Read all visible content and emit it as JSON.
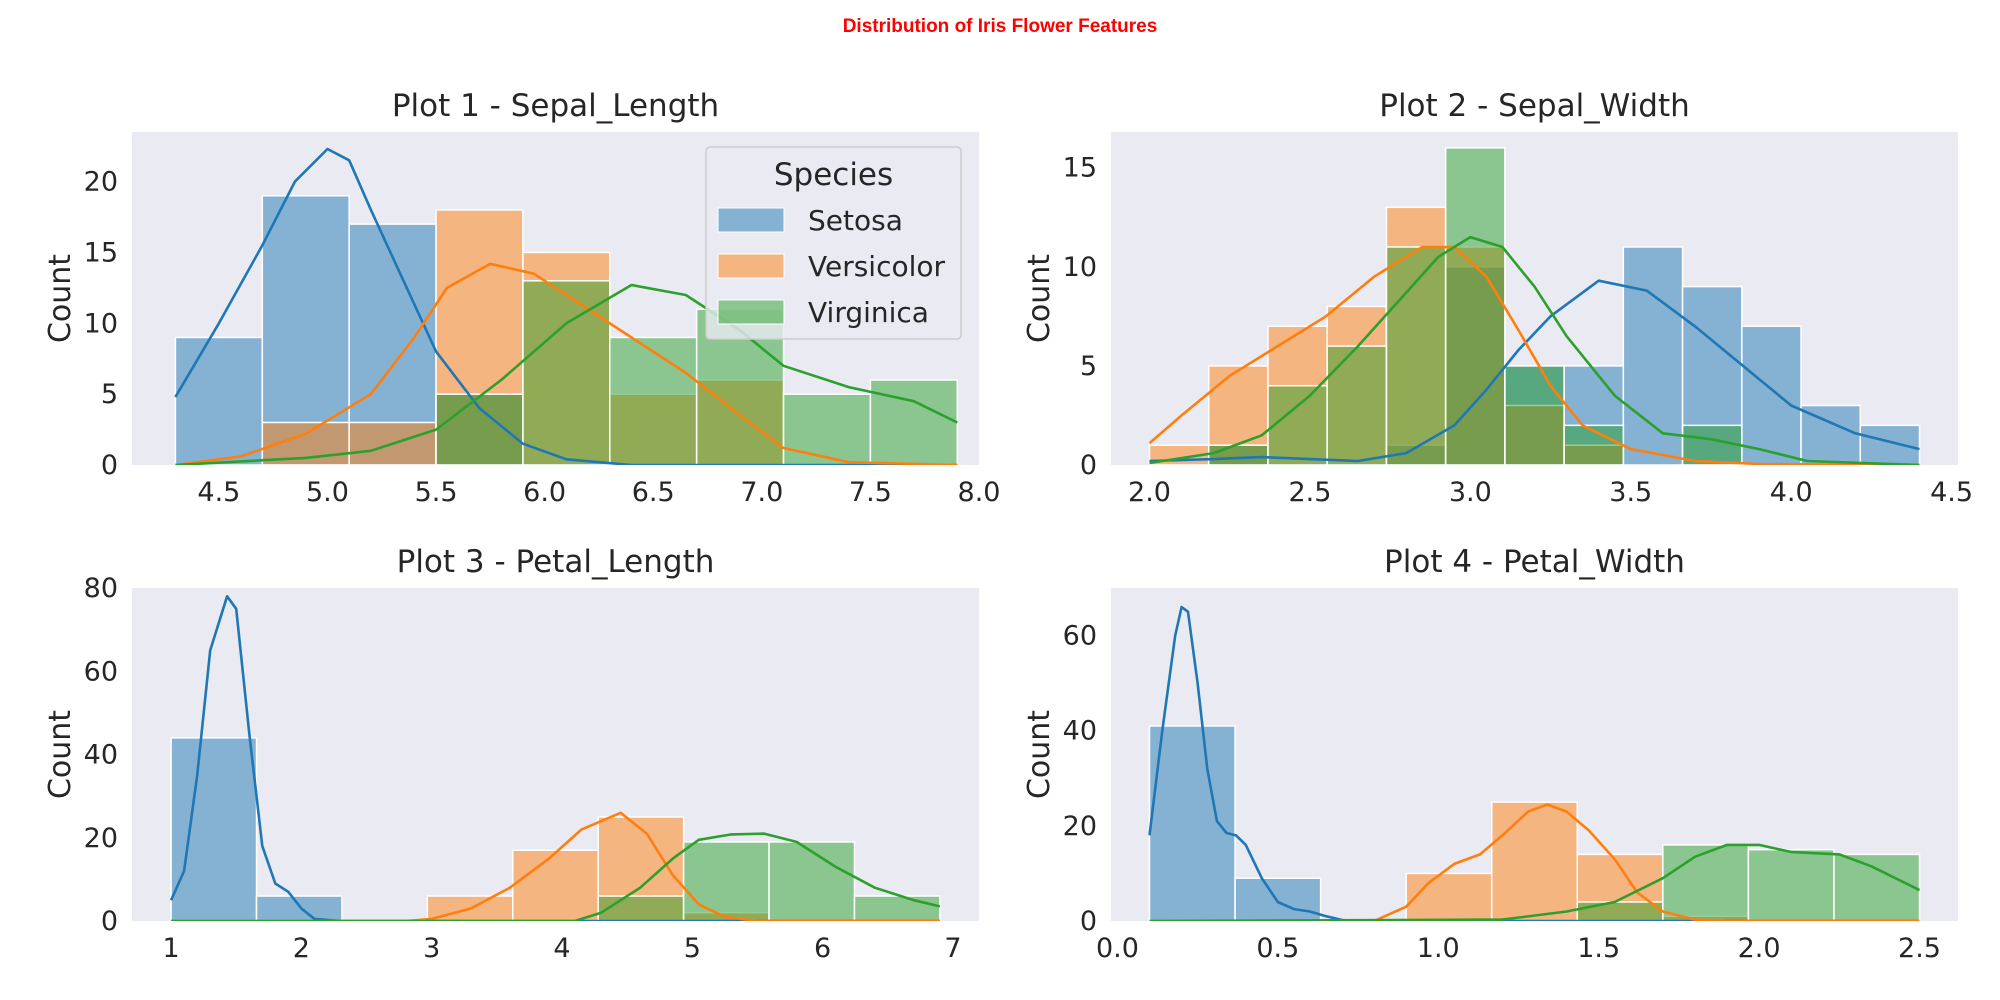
{
  "suptitle": "Distribution of Iris Flower Features",
  "legend": {
    "title": "Species",
    "entries": [
      "Setosa",
      "Versicolor",
      "Virginica"
    ],
    "location": "upper right of Plot 1"
  },
  "colors": {
    "Setosa": "#1f77b4",
    "Versicolor": "#ff7f0e",
    "Virginica": "#2ca02c",
    "background": "#eaeaf2",
    "grid": "off"
  },
  "chart_data": [
    {
      "type": "histogram",
      "title": "Plot 1 - Sepal_Length",
      "xlabel": "",
      "ylabel": "Count",
      "xlim": [
        4.1,
        8.0
      ],
      "ylim": [
        0,
        23.5
      ],
      "xticks": [
        4.5,
        5.0,
        5.5,
        6.0,
        6.5,
        7.0,
        7.5,
        8.0
      ],
      "xtick_labels": [
        "4.5",
        "5.0",
        "5.5",
        "6.0",
        "6.5",
        "7.0",
        "7.5",
        "8.0"
      ],
      "yticks": [
        0,
        5,
        10,
        15,
        20
      ],
      "bin_edges": [
        4.3,
        4.7,
        5.1,
        5.5,
        5.9,
        6.3,
        6.7,
        7.1,
        7.5,
        7.9
      ],
      "series": [
        {
          "name": "Setosa",
          "counts": [
            9,
            19,
            17,
            5,
            0,
            0,
            0,
            0,
            0
          ],
          "kde": [
            [
              4.3,
              4.8
            ],
            [
              4.5,
              10
            ],
            [
              4.7,
              15.5
            ],
            [
              4.85,
              20
            ],
            [
              5.0,
              22.3
            ],
            [
              5.1,
              21.5
            ],
            [
              5.2,
              18
            ],
            [
              5.35,
              13
            ],
            [
              5.5,
              8
            ],
            [
              5.7,
              4
            ],
            [
              5.9,
              1.5
            ],
            [
              6.1,
              0.4
            ],
            [
              6.4,
              0
            ],
            [
              7.9,
              0
            ]
          ]
        },
        {
          "name": "Versicolor",
          "counts": [
            0,
            3,
            3,
            18,
            15,
            5,
            6,
            0,
            0
          ],
          "kde": [
            [
              4.3,
              0
            ],
            [
              4.6,
              0.6
            ],
            [
              4.9,
              2.2
            ],
            [
              5.2,
              5
            ],
            [
              5.4,
              9
            ],
            [
              5.55,
              12.5
            ],
            [
              5.75,
              14.2
            ],
            [
              5.95,
              13.5
            ],
            [
              6.15,
              11.5
            ],
            [
              6.4,
              9
            ],
            [
              6.65,
              6.5
            ],
            [
              6.9,
              3.5
            ],
            [
              7.1,
              1.2
            ],
            [
              7.4,
              0.2
            ],
            [
              7.9,
              0
            ]
          ]
        },
        {
          "name": "Virginica",
          "counts": [
            0,
            0,
            0,
            5,
            13,
            9,
            11,
            5,
            6
          ],
          "kde": [
            [
              4.3,
              0
            ],
            [
              4.9,
              0.5
            ],
            [
              5.2,
              1
            ],
            [
              5.5,
              2.5
            ],
            [
              5.8,
              6
            ],
            [
              6.1,
              10
            ],
            [
              6.4,
              12.7
            ],
            [
              6.65,
              12
            ],
            [
              6.9,
              9.5
            ],
            [
              7.1,
              7
            ],
            [
              7.4,
              5.5
            ],
            [
              7.7,
              4.5
            ],
            [
              7.9,
              3
            ]
          ]
        }
      ]
    },
    {
      "type": "histogram",
      "title": "Plot 2 - Sepal_Width",
      "xlabel": "",
      "ylabel": "Count",
      "xlim": [
        1.88,
        4.52
      ],
      "ylim": [
        0,
        16.8
      ],
      "xticks": [
        2.0,
        2.5,
        3.0,
        3.5,
        4.0,
        4.5
      ],
      "xtick_labels": [
        "2.0",
        "2.5",
        "3.0",
        "3.5",
        "4.0",
        "4.5"
      ],
      "yticks": [
        0,
        5,
        10,
        15
      ],
      "bin_edges": [
        2.0,
        2.1846,
        2.3692,
        2.5538,
        2.7385,
        2.9231,
        3.1077,
        3.2923,
        3.4769,
        3.6615,
        3.8462,
        4.0308,
        4.2154,
        4.4
      ],
      "series": [
        {
          "name": "Setosa",
          "counts": [
            0,
            1,
            0,
            0,
            1,
            10,
            5,
            5,
            11,
            9,
            7,
            3,
            2,
            1
          ],
          "kde": [
            [
              2.0,
              0.2
            ],
            [
              2.2,
              0.3
            ],
            [
              2.35,
              0.4
            ],
            [
              2.5,
              0.3
            ],
            [
              2.65,
              0.2
            ],
            [
              2.8,
              0.6
            ],
            [
              2.95,
              2
            ],
            [
              3.05,
              3.8
            ],
            [
              3.15,
              5.8
            ],
            [
              3.25,
              7.5
            ],
            [
              3.4,
              9.3
            ],
            [
              3.55,
              8.8
            ],
            [
              3.7,
              7
            ],
            [
              3.85,
              5
            ],
            [
              4.0,
              3
            ],
            [
              4.2,
              1.6
            ],
            [
              4.4,
              0.8
            ]
          ]
        },
        {
          "name": "Versicolor",
          "counts": [
            1,
            5,
            7,
            8,
            13,
            11,
            3,
            1,
            0,
            0,
            0,
            0,
            0,
            0
          ],
          "kde": [
            [
              2.0,
              1.1
            ],
            [
              2.1,
              2.5
            ],
            [
              2.25,
              4.5
            ],
            [
              2.4,
              6
            ],
            [
              2.55,
              7.5
            ],
            [
              2.7,
              9.5
            ],
            [
              2.85,
              11
            ],
            [
              2.95,
              11
            ],
            [
              3.05,
              9.5
            ],
            [
              3.15,
              6.8
            ],
            [
              3.25,
              4
            ],
            [
              3.35,
              2
            ],
            [
              3.5,
              0.8
            ],
            [
              3.7,
              0.2
            ],
            [
              3.9,
              0.05
            ],
            [
              4.4,
              0
            ]
          ]
        },
        {
          "name": "Virginica",
          "counts": [
            0,
            1,
            4,
            6,
            11,
            16,
            5,
            2,
            0,
            2,
            0,
            0,
            0,
            0
          ],
          "kde": [
            [
              2.0,
              0.1
            ],
            [
              2.2,
              0.6
            ],
            [
              2.35,
              1.5
            ],
            [
              2.5,
              3.5
            ],
            [
              2.65,
              6
            ],
            [
              2.8,
              8.7
            ],
            [
              2.9,
              10.5
            ],
            [
              3.0,
              11.5
            ],
            [
              3.1,
              11
            ],
            [
              3.2,
              9
            ],
            [
              3.3,
              6.5
            ],
            [
              3.45,
              3.5
            ],
            [
              3.6,
              1.6
            ],
            [
              3.75,
              1.3
            ],
            [
              3.9,
              0.8
            ],
            [
              4.05,
              0.2
            ],
            [
              4.4,
              0
            ]
          ]
        }
      ]
    },
    {
      "type": "histogram",
      "title": "Plot 3 - Petal_Length",
      "xlabel": "",
      "ylabel": "Count",
      "xlim": [
        0.7,
        7.2
      ],
      "ylim": [
        0,
        80
      ],
      "xticks": [
        1,
        2,
        3,
        4,
        5,
        6,
        7
      ],
      "xtick_labels": [
        "1",
        "2",
        "3",
        "4",
        "5",
        "6",
        "7"
      ],
      "yticks": [
        0,
        20,
        40,
        60,
        80
      ],
      "bin_edges": [
        1.0,
        1.6556,
        2.3111,
        2.9667,
        3.6222,
        4.2778,
        4.9333,
        5.5889,
        6.2444,
        6.9
      ],
      "series": [
        {
          "name": "Setosa",
          "counts": [
            44,
            6,
            0,
            0,
            0,
            0,
            0,
            0,
            0
          ],
          "kde": [
            [
              1.0,
              5
            ],
            [
              1.1,
              12
            ],
            [
              1.2,
              35
            ],
            [
              1.3,
              65
            ],
            [
              1.43,
              78
            ],
            [
              1.5,
              75
            ],
            [
              1.6,
              45
            ],
            [
              1.7,
              18
            ],
            [
              1.8,
              9
            ],
            [
              1.9,
              7
            ],
            [
              2.0,
              3
            ],
            [
              2.1,
              0.5
            ],
            [
              2.3,
              0
            ],
            [
              6.9,
              0
            ]
          ]
        },
        {
          "name": "Versicolor",
          "counts": [
            0,
            0,
            0,
            6,
            17,
            25,
            2,
            0,
            0
          ],
          "kde": [
            [
              1.0,
              0
            ],
            [
              2.8,
              0
            ],
            [
              3.0,
              0.5
            ],
            [
              3.3,
              3
            ],
            [
              3.6,
              8
            ],
            [
              3.9,
              15
            ],
            [
              4.15,
              22
            ],
            [
              4.45,
              26
            ],
            [
              4.65,
              21
            ],
            [
              4.85,
              11
            ],
            [
              5.05,
              4
            ],
            [
              5.25,
              1
            ],
            [
              5.5,
              0
            ],
            [
              6.9,
              0
            ]
          ]
        },
        {
          "name": "Virginica",
          "counts": [
            0,
            0,
            0,
            0,
            0,
            6,
            19,
            19,
            6
          ],
          "kde": [
            [
              1.0,
              0
            ],
            [
              4.1,
              0
            ],
            [
              4.3,
              2
            ],
            [
              4.6,
              8
            ],
            [
              4.85,
              15
            ],
            [
              5.05,
              19.5
            ],
            [
              5.3,
              20.8
            ],
            [
              5.55,
              21
            ],
            [
              5.8,
              19
            ],
            [
              6.1,
              13
            ],
            [
              6.4,
              8
            ],
            [
              6.7,
              5
            ],
            [
              6.9,
              3.5
            ]
          ]
        }
      ]
    },
    {
      "type": "histogram",
      "title": "Plot 4 - Petal_Width",
      "xlabel": "",
      "ylabel": "Count",
      "xlim": [
        -0.02,
        2.62
      ],
      "ylim": [
        0,
        70
      ],
      "xticks": [
        0.0,
        0.5,
        1.0,
        1.5,
        2.0,
        2.5
      ],
      "xtick_labels": [
        "0.0",
        "0.5",
        "1.0",
        "1.5",
        "2.0",
        "2.5"
      ],
      "yticks": [
        0,
        20,
        40,
        60
      ],
      "bin_edges": [
        0.1,
        0.3667,
        0.6333,
        0.9,
        1.1667,
        1.4333,
        1.7,
        1.9667,
        2.2333,
        2.5
      ],
      "series": [
        {
          "name": "Setosa",
          "counts": [
            41,
            9,
            0,
            0,
            0,
            0,
            0,
            0,
            0
          ],
          "kde": [
            [
              0.1,
              18
            ],
            [
              0.14,
              40
            ],
            [
              0.18,
              60
            ],
            [
              0.2,
              66
            ],
            [
              0.22,
              65
            ],
            [
              0.25,
              50
            ],
            [
              0.28,
              32
            ],
            [
              0.31,
              21
            ],
            [
              0.34,
              18.5
            ],
            [
              0.37,
              18
            ],
            [
              0.4,
              16
            ],
            [
              0.45,
              9
            ],
            [
              0.5,
              4
            ],
            [
              0.55,
              2.5
            ],
            [
              0.6,
              2
            ],
            [
              0.65,
              1
            ],
            [
              0.7,
              0.2
            ],
            [
              0.75,
              0
            ],
            [
              2.5,
              0
            ]
          ]
        },
        {
          "name": "Versicolor",
          "counts": [
            0,
            0,
            0,
            10,
            25,
            14,
            1,
            0,
            0
          ],
          "kde": [
            [
              0.1,
              0
            ],
            [
              0.8,
              0
            ],
            [
              0.9,
              3
            ],
            [
              0.97,
              8
            ],
            [
              1.05,
              12
            ],
            [
              1.13,
              14
            ],
            [
              1.2,
              18
            ],
            [
              1.28,
              23
            ],
            [
              1.34,
              24.5
            ],
            [
              1.4,
              23
            ],
            [
              1.47,
              19
            ],
            [
              1.55,
              13
            ],
            [
              1.62,
              6
            ],
            [
              1.7,
              2
            ],
            [
              1.8,
              0.3
            ],
            [
              1.9,
              0
            ],
            [
              2.5,
              0
            ]
          ]
        },
        {
          "name": "Virginica",
          "counts": [
            0,
            0,
            0,
            0,
            0,
            4,
            16,
            15,
            14
          ],
          "kde": [
            [
              0.1,
              0
            ],
            [
              1.2,
              0.3
            ],
            [
              1.4,
              2
            ],
            [
              1.55,
              4
            ],
            [
              1.7,
              9
            ],
            [
              1.8,
              13.5
            ],
            [
              1.9,
              16
            ],
            [
              2.0,
              16
            ],
            [
              2.1,
              14.5
            ],
            [
              2.25,
              14
            ],
            [
              2.35,
              11.5
            ],
            [
              2.5,
              6.5
            ]
          ]
        }
      ]
    }
  ]
}
